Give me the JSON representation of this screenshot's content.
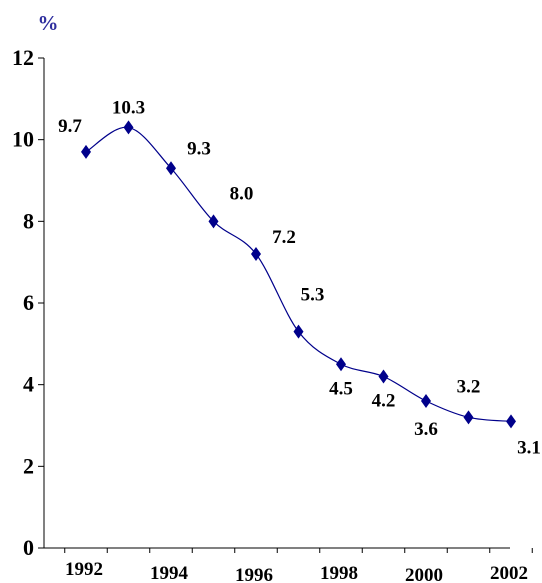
{
  "chart_data": {
    "type": "line",
    "title": "",
    "xlabel": "",
    "ylabel": "%",
    "x": [
      1992,
      1993,
      1994,
      1995,
      1996,
      1997,
      1998,
      1999,
      2000,
      2001,
      2002
    ],
    "series": [
      {
        "values": [
          9.7,
          10.3,
          9.3,
          8.0,
          7.2,
          5.3,
          4.5,
          4.2,
          3.6,
          3.2,
          3.1
        ],
        "labels": [
          "9.7",
          "10.3",
          "9.3",
          "8.0",
          "7.2",
          "5.3",
          "4.5",
          "4.2",
          "3.6",
          "3.2",
          "3.1"
        ]
      }
    ],
    "ylim": [
      0,
      12
    ],
    "yticks": [
      0,
      2,
      4,
      6,
      8,
      10,
      12
    ],
    "ytick_labels": [
      "0",
      "2",
      "4",
      "6",
      "8",
      "10",
      "12"
    ],
    "xtick_labels": [
      "1992",
      "1994",
      "1996",
      "1998",
      "2000",
      "2002"
    ],
    "xtick_years": [
      1992,
      1994,
      1996,
      1998,
      2000,
      2002
    ],
    "grid": false,
    "legend": "none",
    "colors": {
      "series": "#00008b",
      "ylabel": "#2e2e9e",
      "axis": "#000000",
      "text": "#000000"
    },
    "marker": "diamond"
  }
}
